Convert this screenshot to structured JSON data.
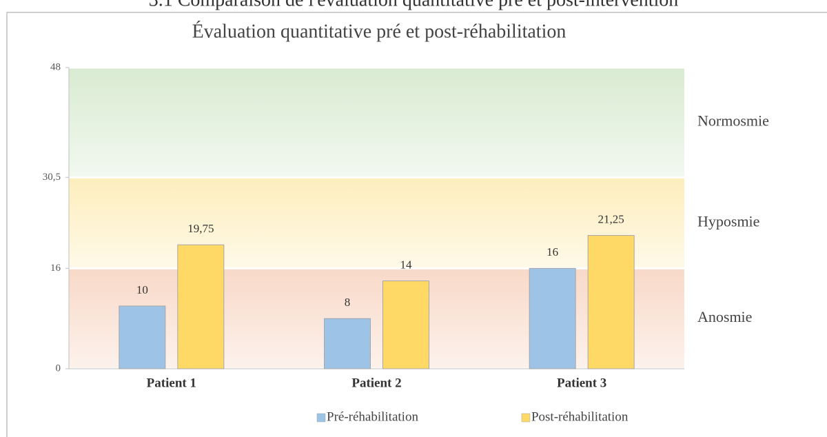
{
  "heading": "3.1 Comparaison de l'évaluation quantitative pré et post-intervention",
  "chart_data": {
    "type": "bar",
    "title": "Évaluation quantitative pré et post-réhabilitation",
    "categories": [
      "Patient 1",
      "Patient 2",
      "Patient 3"
    ],
    "series": [
      {
        "name": "Pré-réhabilitation",
        "color": "#9dc3e6",
        "values": [
          10,
          8,
          16
        ],
        "value_labels": [
          "10",
          "8",
          "16"
        ]
      },
      {
        "name": "Post-réhabilitation",
        "color": "#ffd966",
        "values": [
          19.75,
          14,
          21.25
        ],
        "value_labels": [
          "19,75",
          "14",
          "21,25"
        ]
      }
    ],
    "ylim": [
      0,
      48
    ],
    "yticks": [
      0,
      16,
      {
        "value": 30.5,
        "label": "30,5"
      },
      48
    ],
    "bands": [
      {
        "label": "Anosmie",
        "range": [
          0,
          16
        ],
        "color": "#f8d9c8"
      },
      {
        "label": "Hyposmie",
        "range": [
          16,
          30.5
        ],
        "color": "#fdeebd"
      },
      {
        "label": "Normosmie",
        "range": [
          30.5,
          48
        ],
        "color": "#d9ebd2"
      }
    ],
    "legend": "bottom"
  }
}
